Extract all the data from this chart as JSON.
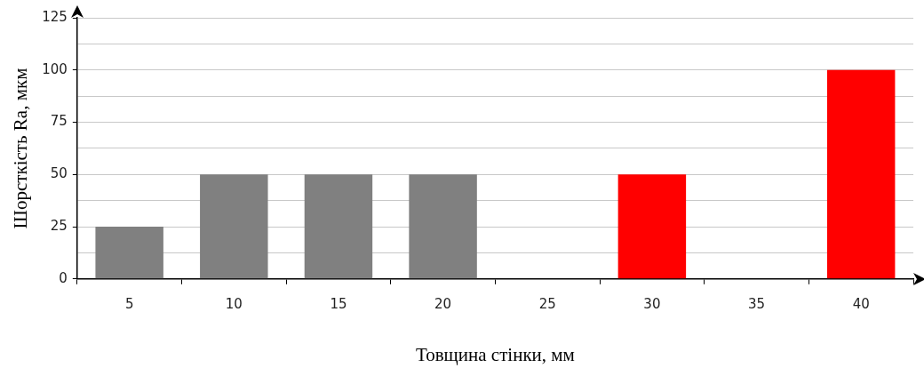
{
  "chart_data": {
    "type": "bar",
    "xlabel": "Товщина стінки, мм",
    "ylabel": "Шорсткість Ra, мкм",
    "categories": [
      "5",
      "10",
      "15",
      "20",
      "25",
      "30",
      "35",
      "40"
    ],
    "values": [
      25,
      50,
      50,
      50,
      null,
      50,
      null,
      100
    ],
    "colors": [
      "#808080",
      "#808080",
      "#808080",
      "#808080",
      "#808080",
      "#ff0000",
      "#808080",
      "#ff0000"
    ],
    "ylim": [
      0,
      125
    ],
    "yticks": [
      0,
      {
        "value": 12.5,
        "label": null
      },
      25,
      {
        "value": 37.5,
        "label": null
      },
      50,
      {
        "value": 62.5,
        "label": null
      },
      75,
      {
        "value": 87.5,
        "label": null
      },
      100,
      {
        "value": 112.5,
        "label": null
      },
      125
    ],
    "grid": "y"
  }
}
